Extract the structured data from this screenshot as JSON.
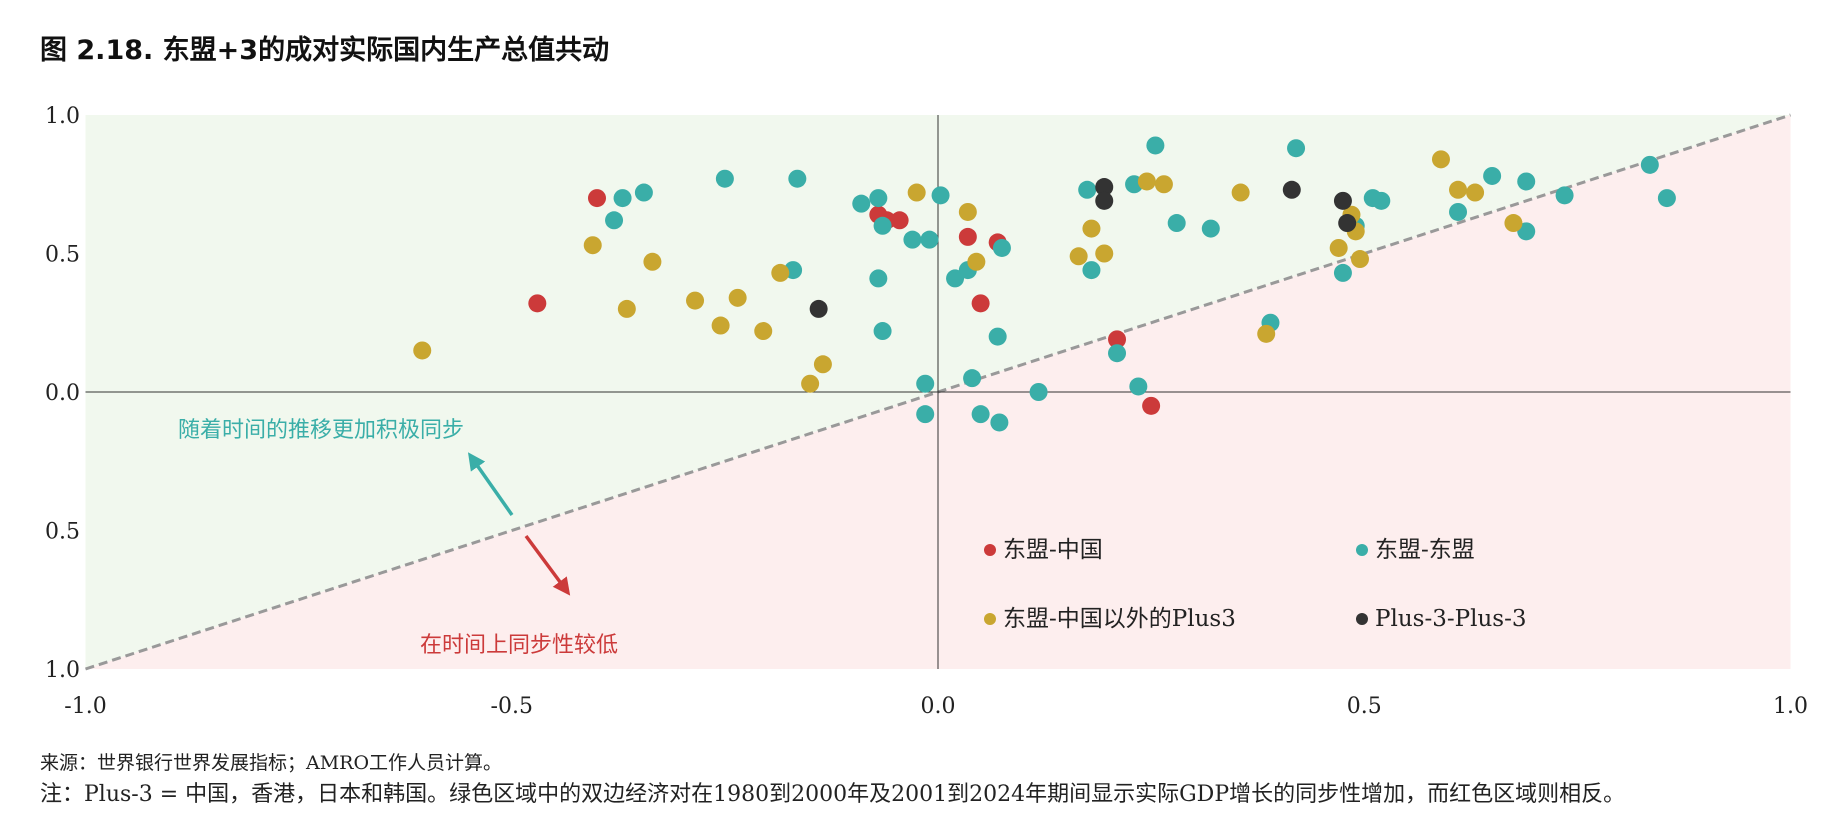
{
  "title": "图 2.18. 东盟+3的成对实际国内生产总值共动",
  "source": "来源：世界银行世界发展指标；AMRO工作人员计算。",
  "note": "注：Plus-3 = 中国，香港，日本和韩国。绿色区域中的双边经济对在1980到2000年及2001到2024年期间显示实际GDP增长的同步性增加，而红色区域则相反。",
  "chart_data": {
    "type": "scatter",
    "xlim": [
      -1.0,
      1.0
    ],
    "ylim": [
      -1.0,
      1.0
    ],
    "x_ticks": [
      "-1.0",
      "-0.5",
      "0.0",
      "0.5",
      "1.0"
    ],
    "y_ticks": [
      "1.0",
      "0.5",
      "0.0",
      "0.5",
      "1.0"
    ],
    "grid": false,
    "legend_position": "bottom-right",
    "annotations": {
      "upper": "随着时间的推移更加积极同步",
      "lower": "在时间上同步性较低"
    },
    "colors": {
      "upper_region": "#f1f8ee",
      "lower_region": "#fdeeee",
      "diagonal": "#999999",
      "upper_arrow": "#3aaea8",
      "lower_arrow": "#cc3a3a"
    },
    "series": [
      {
        "name": "东盟-中国",
        "color": "#cc3a3a",
        "points": [
          [
            -0.4,
            0.7
          ],
          [
            -0.47,
            0.32
          ],
          [
            -0.07,
            0.64
          ],
          [
            -0.06,
            0.62
          ],
          [
            -0.045,
            0.62
          ],
          [
            0.035,
            0.56
          ],
          [
            0.07,
            0.54
          ],
          [
            0.05,
            0.32
          ],
          [
            0.21,
            0.19
          ],
          [
            0.25,
            -0.05
          ]
        ]
      },
      {
        "name": "东盟-东盟",
        "color": "#3aaea8",
        "points": [
          [
            -0.38,
            0.62
          ],
          [
            -0.37,
            0.7
          ],
          [
            -0.345,
            0.72
          ],
          [
            -0.25,
            0.77
          ],
          [
            -0.165,
            0.77
          ],
          [
            -0.17,
            0.44
          ],
          [
            -0.09,
            0.68
          ],
          [
            -0.07,
            0.7
          ],
          [
            -0.065,
            0.6
          ],
          [
            -0.07,
            0.41
          ],
          [
            -0.065,
            0.22
          ],
          [
            -0.03,
            0.55
          ],
          [
            -0.01,
            0.55
          ],
          [
            0.003,
            0.71
          ],
          [
            0.02,
            0.41
          ],
          [
            0.035,
            0.44
          ],
          [
            0.075,
            0.52
          ],
          [
            0.07,
            0.2
          ],
          [
            0.04,
            0.05
          ],
          [
            -0.015,
            0.03
          ],
          [
            -0.015,
            -0.08
          ],
          [
            0.05,
            -0.08
          ],
          [
            0.072,
            -0.11
          ],
          [
            0.118,
            0.0
          ],
          [
            0.175,
            0.73
          ],
          [
            0.18,
            0.44
          ],
          [
            0.23,
            0.75
          ],
          [
            0.255,
            0.89
          ],
          [
            0.28,
            0.61
          ],
          [
            0.32,
            0.59
          ],
          [
            0.21,
            0.14
          ],
          [
            0.235,
            0.02
          ],
          [
            0.42,
            0.88
          ],
          [
            0.39,
            0.25
          ],
          [
            0.475,
            0.43
          ],
          [
            0.49,
            0.6
          ],
          [
            0.51,
            0.7
          ],
          [
            0.52,
            0.69
          ],
          [
            0.61,
            0.65
          ],
          [
            0.65,
            0.78
          ],
          [
            0.69,
            0.76
          ],
          [
            0.69,
            0.58
          ],
          [
            0.735,
            0.71
          ],
          [
            0.835,
            0.82
          ],
          [
            0.855,
            0.7
          ]
        ]
      },
      {
        "name": "东盟-中国以外的Plus3",
        "color": "#c9a630",
        "points": [
          [
            -0.605,
            0.15
          ],
          [
            -0.405,
            0.53
          ],
          [
            -0.365,
            0.3
          ],
          [
            -0.335,
            0.47
          ],
          [
            -0.285,
            0.33
          ],
          [
            -0.255,
            0.24
          ],
          [
            -0.235,
            0.34
          ],
          [
            -0.205,
            0.22
          ],
          [
            -0.185,
            0.43
          ],
          [
            -0.15,
            0.03
          ],
          [
            -0.135,
            0.1
          ],
          [
            -0.025,
            0.72
          ],
          [
            0.035,
            0.65
          ],
          [
            0.045,
            0.47
          ],
          [
            0.165,
            0.49
          ],
          [
            0.18,
            0.59
          ],
          [
            0.195,
            0.5
          ],
          [
            0.245,
            0.76
          ],
          [
            0.265,
            0.75
          ],
          [
            0.355,
            0.72
          ],
          [
            0.385,
            0.21
          ],
          [
            0.47,
            0.52
          ],
          [
            0.485,
            0.64
          ],
          [
            0.49,
            0.58
          ],
          [
            0.495,
            0.48
          ],
          [
            0.59,
            0.84
          ],
          [
            0.61,
            0.73
          ],
          [
            0.63,
            0.72
          ],
          [
            0.675,
            0.61
          ]
        ]
      },
      {
        "name": "Plus-3-Plus-3",
        "color": "#333333",
        "points": [
          [
            -0.14,
            0.3
          ],
          [
            0.195,
            0.74
          ],
          [
            0.195,
            0.69
          ],
          [
            0.415,
            0.73
          ],
          [
            0.475,
            0.69
          ],
          [
            0.48,
            0.61
          ]
        ]
      }
    ]
  }
}
